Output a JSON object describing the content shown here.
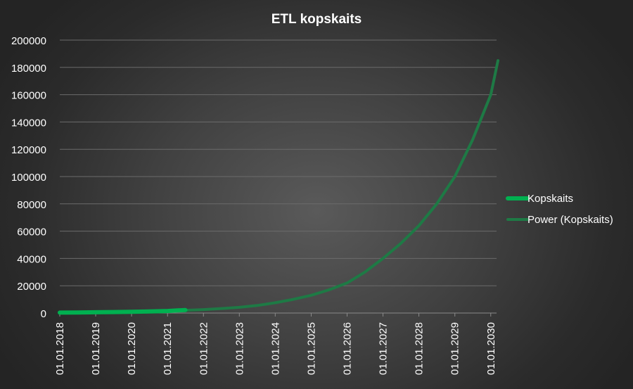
{
  "chart_data": {
    "type": "line",
    "title": "ETL kopskaits",
    "xlabel": "",
    "ylabel": "",
    "ylim": [
      0,
      200000
    ],
    "yticks": [
      "0",
      "20000",
      "40000",
      "60000",
      "80000",
      "100000",
      "120000",
      "140000",
      "160000",
      "180000",
      "200000"
    ],
    "xlim": [
      "2018-01-01",
      "2030-03-01"
    ],
    "xticks": [
      "01.01.2018",
      "01.01.2019",
      "01.01.2020",
      "01.01.2021",
      "01.01.2022",
      "01.01.2023",
      "01.01.2024",
      "01.01.2025",
      "01.01.2026",
      "01.01.2027",
      "01.01.2028",
      "01.01.2029",
      "01.01.2030"
    ],
    "grid": true,
    "legend_position": "right",
    "series": [
      {
        "name": "Kopskaits",
        "color": "#00b050",
        "points": [
          {
            "x": "2018-01-01",
            "y": 300
          },
          {
            "x": "2018-07-01",
            "y": 420
          },
          {
            "x": "2019-01-01",
            "y": 550
          },
          {
            "x": "2019-07-01",
            "y": 700
          },
          {
            "x": "2020-01-01",
            "y": 900
          },
          {
            "x": "2020-07-01",
            "y": 1150
          },
          {
            "x": "2021-01-01",
            "y": 1500
          },
          {
            "x": "2021-07-01",
            "y": 2200
          }
        ]
      },
      {
        "name": "Power (Kopskaits)",
        "color": "#1e7a45",
        "points": [
          {
            "x": "2021-07-01",
            "y": 2000
          },
          {
            "x": "2022-01-01",
            "y": 2500
          },
          {
            "x": "2022-07-01",
            "y": 3300
          },
          {
            "x": "2023-01-01",
            "y": 4200
          },
          {
            "x": "2023-07-01",
            "y": 5500
          },
          {
            "x": "2024-01-01",
            "y": 7500
          },
          {
            "x": "2024-07-01",
            "y": 10000
          },
          {
            "x": "2025-01-01",
            "y": 13000
          },
          {
            "x": "2025-07-01",
            "y": 17000
          },
          {
            "x": "2026-01-01",
            "y": 22000
          },
          {
            "x": "2026-07-01",
            "y": 30000
          },
          {
            "x": "2027-01-01",
            "y": 40000
          },
          {
            "x": "2027-07-01",
            "y": 51000
          },
          {
            "x": "2028-01-01",
            "y": 64000
          },
          {
            "x": "2028-07-01",
            "y": 80000
          },
          {
            "x": "2029-01-01",
            "y": 100000
          },
          {
            "x": "2029-07-01",
            "y": 127000
          },
          {
            "x": "2030-01-01",
            "y": 160000
          },
          {
            "x": "2030-03-15",
            "y": 185000
          }
        ]
      }
    ]
  }
}
